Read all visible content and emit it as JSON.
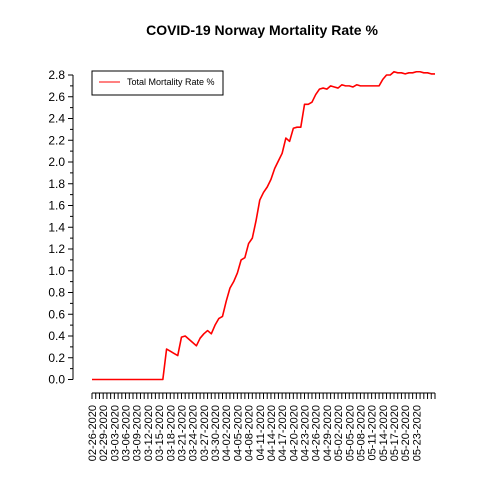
{
  "chart_data": {
    "type": "line",
    "title": "COVID-19 Norway Mortality Rate %",
    "xlabel": "",
    "ylabel": "",
    "ylim": [
      0,
      2.8
    ],
    "y_ticks": [
      0.0,
      0.2,
      0.4,
      0.6,
      0.8,
      1.0,
      1.2,
      1.4,
      1.6,
      1.8,
      2.0,
      2.2,
      2.4,
      2.6,
      2.8
    ],
    "y_tick_labels": [
      "0.0",
      "0.2",
      "0.4",
      "0.6",
      "0.8",
      "1.0",
      "1.2",
      "1.4",
      "1.6",
      "1.8",
      "2.0",
      "2.2",
      "2.4",
      "2.6",
      "2.8"
    ],
    "x_tick_labels": [
      "02-26-2020",
      "02-29-2020",
      "03-03-2020",
      "03-06-2020",
      "03-09-2020",
      "03-12-2020",
      "03-15-2020",
      "03-18-2020",
      "03-21-2020",
      "03-24-2020",
      "03-27-2020",
      "03-30-2020",
      "04-02-2020",
      "04-05-2020",
      "04-08-2020",
      "04-11-2020",
      "04-14-2020",
      "04-17-2020",
      "04-20-2020",
      "04-23-2020",
      "04-26-2020",
      "04-29-2020",
      "05-02-2020",
      "05-05-2020",
      "05-08-2020",
      "05-11-2020",
      "05-14-2020",
      "05-17-2020",
      "05-20-2020",
      "05-23-2020"
    ],
    "grid": false,
    "legend_position": "top-left",
    "series": [
      {
        "name": "Total Mortality Rate %",
        "color": "#ff0000",
        "values": [
          0,
          0,
          0,
          0,
          0,
          0,
          0,
          0,
          0,
          0,
          0,
          0,
          0,
          0,
          0,
          0,
          0,
          0,
          0,
          0,
          0.28,
          0.26,
          0.24,
          0.22,
          0.39,
          0.4,
          0.37,
          0.34,
          0.31,
          0.38,
          0.42,
          0.45,
          0.42,
          0.5,
          0.56,
          0.58,
          0.72,
          0.84,
          0.9,
          0.98,
          1.1,
          1.12,
          1.25,
          1.3,
          1.46,
          1.65,
          1.72,
          1.77,
          1.84,
          1.94,
          2.01,
          2.08,
          2.22,
          2.19,
          2.31,
          2.32,
          2.32,
          2.53,
          2.53,
          2.55,
          2.62,
          2.67,
          2.68,
          2.67,
          2.7,
          2.69,
          2.68,
          2.71,
          2.7,
          2.7,
          2.69,
          2.71,
          2.7,
          2.7,
          2.7,
          2.7,
          2.7,
          2.7,
          2.76,
          2.8,
          2.8,
          2.83,
          2.82,
          2.82,
          2.81,
          2.82,
          2.82,
          2.83,
          2.83,
          2.82,
          2.82,
          2.81,
          2.81
        ]
      }
    ]
  }
}
